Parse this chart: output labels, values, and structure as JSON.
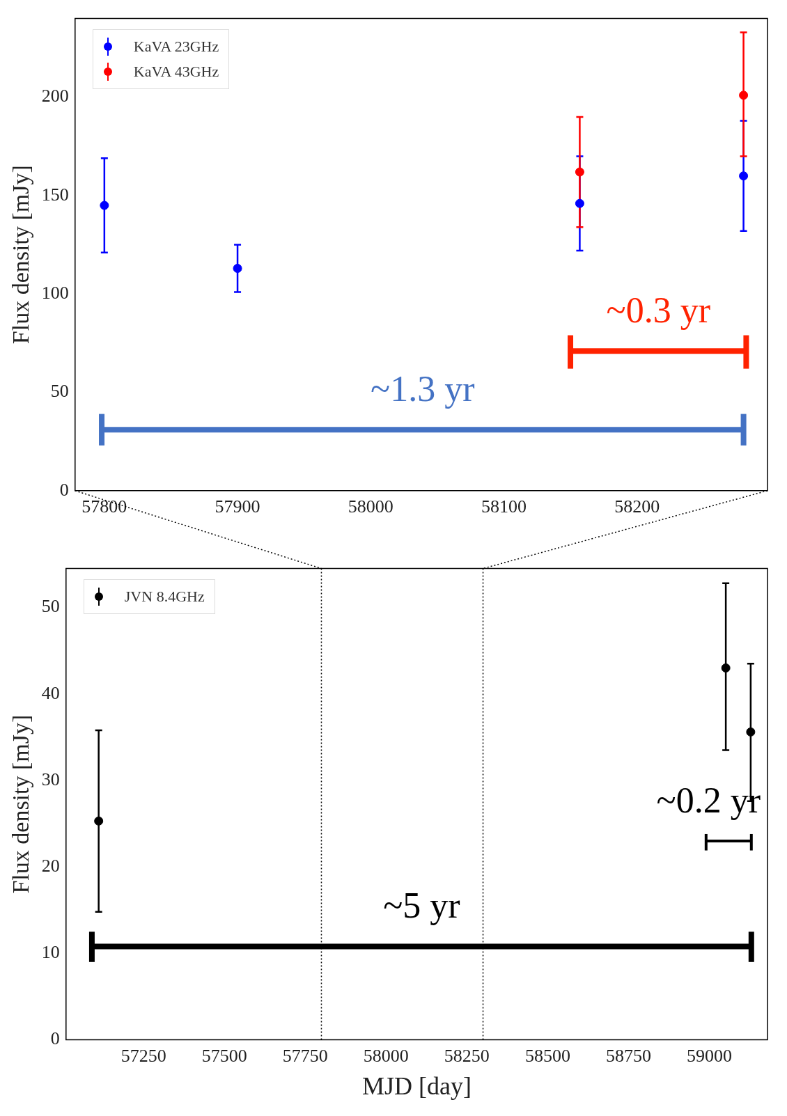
{
  "chart_data": [
    {
      "type": "scatter",
      "ylabel": "Flux density [mJy]",
      "xlim": [
        57778,
        58298
      ],
      "xticks": [
        57800,
        57900,
        58000,
        58100,
        58200
      ],
      "ylim": [
        0,
        240
      ],
      "yticks": [
        0,
        50,
        100,
        150,
        200
      ],
      "legend": "top left",
      "marker": "circle",
      "annotations": [
        "~1.3 yr",
        "~0.3 yr"
      ],
      "series": [
        {
          "name": "KaVA 23GHz",
          "color": "#0000ff",
          "x": [
            57800,
            57900,
            58157,
            58280
          ],
          "values": [
            145,
            113,
            146,
            160
          ],
          "errors": [
            [
              121,
              169
            ],
            [
              101,
              125
            ],
            [
              122,
              170
            ],
            [
              132,
              188
            ]
          ]
        },
        {
          "name": "KaVA 43GHz",
          "color": "#ff0000",
          "x": [
            58157,
            58280
          ],
          "values": [
            162,
            201
          ],
          "errors": [
            [
              134,
              190
            ],
            [
              170,
              233
            ]
          ]
        },
        {
          "type": "line",
          "marker": "none",
          "color": "#4472c4",
          "x": [
            57798,
            58280
          ],
          "values": [
            31,
            31
          ],
          "errors": [
            [
              23,
              39
            ],
            [
              23,
              39
            ]
          ]
        },
        {
          "type": "line",
          "marker": "none",
          "color": "#ff2200",
          "x": [
            58150,
            58282
          ],
          "values": [
            71,
            71
          ],
          "errors": [
            [
              62,
              79
            ],
            [
              62,
              79
            ]
          ]
        }
      ]
    },
    {
      "type": "scatter",
      "xlabel": "MJD [day]",
      "ylabel": "Flux density [mJy]",
      "xlim": [
        57010,
        59180
      ],
      "xticks": [
        57250,
        57500,
        57750,
        58000,
        58250,
        58500,
        58750,
        59000
      ],
      "ylim": [
        0,
        54.5
      ],
      "yticks": [
        0,
        10,
        20,
        30,
        40,
        50
      ],
      "legend": "top left",
      "marker": "circle",
      "ref_lines": [
        {
          "axis": "x",
          "value": 57800,
          "color": "#000000",
          "line_style": "dotted"
        },
        {
          "axis": "x",
          "value": 58300,
          "color": "#000000",
          "line_style": "dotted"
        }
      ],
      "annotations": [
        "~5 yr",
        "~0.2 yr"
      ],
      "series": [
        {
          "name": "JVN 8.4GHz",
          "color": "#000000",
          "x": [
            57111,
            59051,
            59128
          ],
          "values": [
            25.3,
            43,
            35.6
          ],
          "errors": [
            [
              14.8,
              35.8
            ],
            [
              33.5,
              52.8
            ],
            [
              27.6,
              43.5
            ]
          ]
        },
        {
          "type": "line",
          "marker": "none",
          "color": "#000000",
          "x": [
            57090,
            59130
          ],
          "values": [
            10.8,
            10.8
          ],
          "errors": [
            [
              9,
              12.5
            ],
            [
              9,
              12.5
            ]
          ]
        },
        {
          "type": "line",
          "marker": "none",
          "color": "#000000",
          "x": [
            58990,
            59130
          ],
          "values": [
            23,
            23
          ],
          "errors": [
            [
              21.9,
              23.8
            ],
            [
              21.9,
              23.8
            ]
          ]
        }
      ]
    }
  ]
}
